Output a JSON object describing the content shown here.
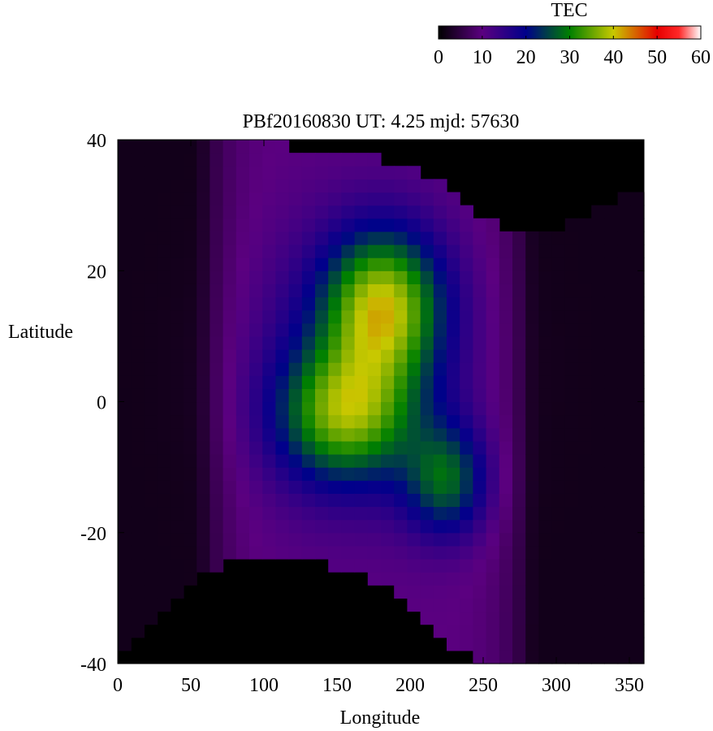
{
  "chart_data": {
    "type": "heatmap",
    "title": "PBf20160830  UT: 4.25  mjd: 57630",
    "xlabel": "Longitude",
    "ylabel": "Latitude",
    "xlim": [
      0,
      360
    ],
    "ylim": [
      -40,
      40
    ],
    "x_ticks": [
      0,
      50,
      100,
      150,
      200,
      250,
      300,
      350
    ],
    "y_ticks": [
      -40,
      -20,
      0,
      20,
      40
    ],
    "cell_width_deg": 9,
    "cell_height_deg": 2,
    "grid": false,
    "colorbar": {
      "label": "TEC",
      "range": [
        0,
        60
      ],
      "ticks": [
        0,
        10,
        20,
        30,
        40,
        50,
        60
      ],
      "placement": "top-right",
      "colors": [
        {
          "value": 0,
          "color": "#000000"
        },
        {
          "value": 10,
          "color": "#5b0080"
        },
        {
          "value": 20,
          "color": "#00008b"
        },
        {
          "value": 30,
          "color": "#008000"
        },
        {
          "value": 40,
          "color": "#c8c800"
        },
        {
          "value": 50,
          "color": "#e60000"
        },
        {
          "value": 55,
          "color": "#ff2828"
        },
        {
          "value": 60,
          "color": "#ffffff"
        }
      ]
    },
    "field_model": {
      "note_visible": false,
      "valid_lat_north_edge": [
        [
          0,
          40
        ],
        [
          80,
          40
        ],
        [
          160,
          38
        ],
        [
          210,
          35
        ],
        [
          240,
          30
        ],
        [
          270,
          25
        ],
        [
          300,
          26
        ],
        [
          330,
          30
        ],
        [
          360,
          32
        ]
      ],
      "valid_lat_south_edge": [
        [
          0,
          -40
        ],
        [
          60,
          -26
        ],
        [
          90,
          -24
        ],
        [
          130,
          -24
        ],
        [
          170,
          -27
        ],
        [
          200,
          -31
        ],
        [
          230,
          -38
        ],
        [
          260,
          -41
        ],
        [
          360,
          -41
        ]
      ],
      "background_tec": 2,
      "band_tec": 8,
      "band_lon_range": [
        55,
        285
      ],
      "blobs": [
        {
          "lon": 182,
          "lat": 15,
          "sigma_lon": 28,
          "sigma_lat": 8,
          "amp": 24
        },
        {
          "lon": 155,
          "lat": -2,
          "sigma_lon": 32,
          "sigma_lat": 7,
          "amp": 20
        },
        {
          "lon": 225,
          "lat": -12,
          "sigma_lon": 20,
          "sigma_lat": 6,
          "amp": 16
        },
        {
          "lon": 165,
          "lat": 5,
          "sigma_lon": 48,
          "sigma_lat": 14,
          "amp": 9
        }
      ]
    }
  }
}
